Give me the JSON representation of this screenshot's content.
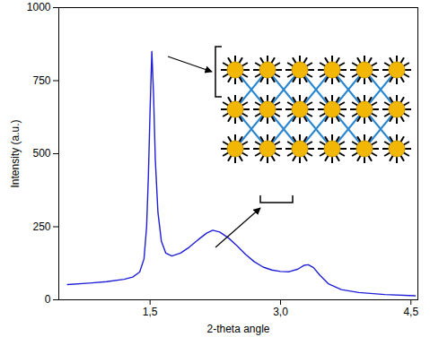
{
  "chart_data": {
    "type": "line",
    "xlabel": "2-theta angle",
    "ylabel": "Intensity (a.u.)",
    "color": "#1f1fd6",
    "x": [
      0.55,
      0.8,
      1.0,
      1.2,
      1.3,
      1.38,
      1.43,
      1.46,
      1.48,
      1.5,
      1.52,
      1.54,
      1.56,
      1.59,
      1.63,
      1.68,
      1.75,
      1.85,
      1.95,
      2.05,
      2.15,
      2.22,
      2.3,
      2.4,
      2.5,
      2.6,
      2.7,
      2.8,
      2.9,
      3.0,
      3.1,
      3.2,
      3.27,
      3.32,
      3.38,
      3.45,
      3.55,
      3.7,
      3.9,
      4.2,
      4.55
    ],
    "values": [
      52,
      57,
      62,
      70,
      78,
      95,
      140,
      250,
      420,
      650,
      850,
      700,
      480,
      300,
      200,
      160,
      150,
      160,
      180,
      205,
      228,
      238,
      232,
      212,
      185,
      155,
      130,
      112,
      102,
      97,
      96,
      105,
      118,
      120,
      110,
      85,
      55,
      35,
      25,
      18,
      14
    ],
    "xlim": [
      0.45,
      4.58
    ],
    "ylim": [
      0,
      1000
    ],
    "xticks": [
      {
        "value": 1.5,
        "label": "1,5"
      },
      {
        "value": 3.0,
        "label": "3,0"
      },
      {
        "value": 4.5,
        "label": "4,5"
      }
    ],
    "yticks": [
      0,
      250,
      500,
      750,
      1000
    ],
    "grid": false
  }
}
